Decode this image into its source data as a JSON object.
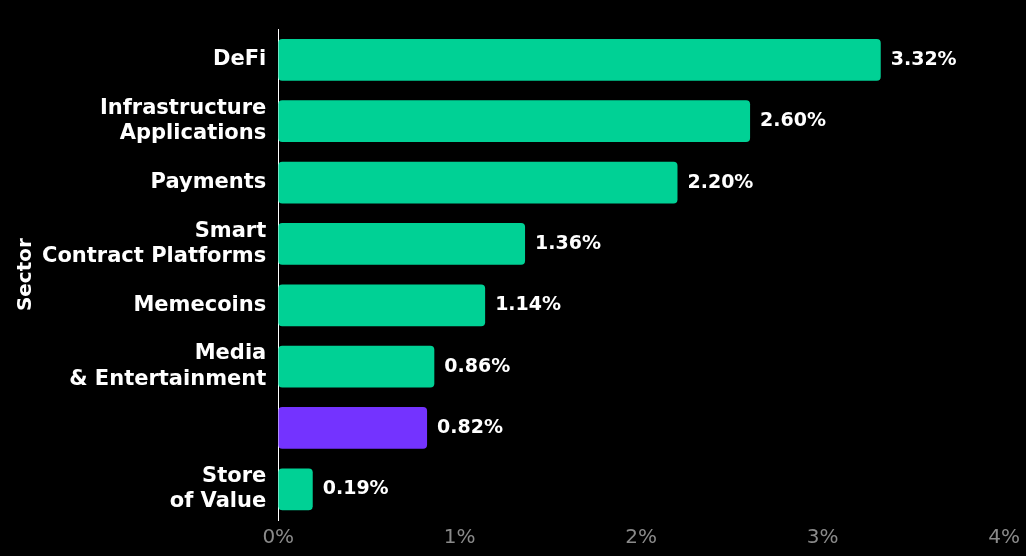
{
  "chart_data": {
    "type": "bar",
    "orientation": "horizontal",
    "ylabel": "Sector",
    "categories": [
      "DeFi",
      "Infrastructure Applications",
      "Payments",
      "Smart Contract Platforms",
      "Memecoins",
      "Media & Entertainment",
      null,
      "Store of Value"
    ],
    "values": [
      3.32,
      2.6,
      2.2,
      1.36,
      1.14,
      0.86,
      0.82,
      0.19
    ],
    "colors": [
      "#00d195",
      "#00d195",
      "#00d195",
      "#00d195",
      "#00d195",
      "#00d195",
      "#7433ff",
      "#00d195"
    ],
    "value_labels": [
      "3.32%",
      "2.60%",
      "2.20%",
      "1.36%",
      "1.14%",
      "0.86%",
      "0.82%",
      "0.19%"
    ],
    "xlim": [
      0,
      4
    ],
    "xticks": [
      {
        "value": 0,
        "label": "0%"
      },
      {
        "value": 1,
        "label": "1%"
      },
      {
        "value": 2,
        "label": "2%"
      },
      {
        "value": 3,
        "label": "3%"
      },
      {
        "value": 4,
        "label": "4%"
      }
    ],
    "grid": false,
    "legend": false
  }
}
